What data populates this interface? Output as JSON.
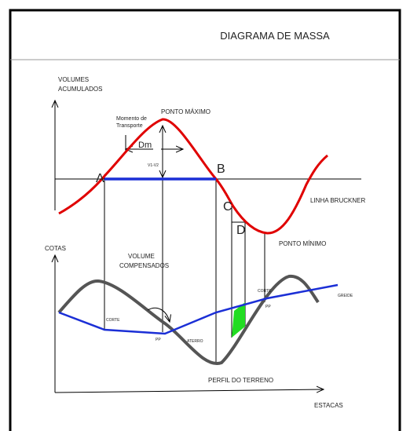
{
  "header": {
    "title": "DIAGRAMA DE MASSA"
  },
  "labels": {
    "volumes_acumulados": [
      "VOLUMES",
      "ACUMULADOS"
    ],
    "ponto_maximo": "PONTO MÁXIMO",
    "momento": [
      "Momento de",
      "Transporte"
    ],
    "dm": "Dm",
    "v1v2": "V1-V2",
    "a": "A",
    "b": "B",
    "c": "C",
    "d": "D",
    "linha": "LINHA BRUCKNER",
    "ponto_minimo": "PONTO MÍNIMO",
    "cotas": "COTAS",
    "volume_compensados": [
      "VOLUME",
      "COMPENSADOS"
    ],
    "corte": "CORTE",
    "corte_small": "CORTE",
    "aterro": "ATERRO",
    "pp1": "PP",
    "pp2": "PP",
    "greide": "GREIDE",
    "perfil": "PERFIL DO TERRENO",
    "estacas": "ESTACAS"
  }
}
